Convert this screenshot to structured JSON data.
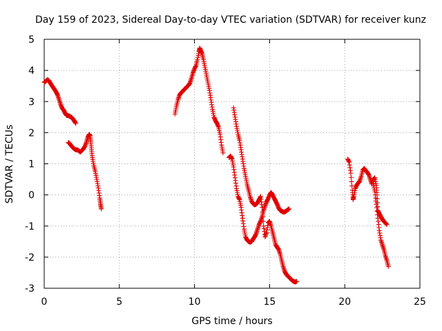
{
  "chart_data": {
    "type": "scatter",
    "title": "Day 159 of 2023, Sidereal Day-to-day VTEC variation (SDTVAR) for receiver kunz",
    "xlabel": "GPS time / hours",
    "ylabel": "SDTVAR / TECUs",
    "xlim": [
      0,
      25
    ],
    "ylim": [
      -3,
      5
    ],
    "xticks": [
      0,
      5,
      10,
      15,
      20,
      25
    ],
    "yticks": [
      -3,
      -2,
      -1,
      0,
      1,
      2,
      3,
      4,
      5
    ],
    "grid": true,
    "marker": "+",
    "color": "#e00000",
    "series": [
      {
        "name": "segment-1",
        "points": [
          [
            0.0,
            3.62
          ],
          [
            0.1,
            3.65
          ],
          [
            0.2,
            3.7
          ],
          [
            0.3,
            3.68
          ],
          [
            0.4,
            3.6
          ],
          [
            0.5,
            3.52
          ],
          [
            0.6,
            3.45
          ],
          [
            0.7,
            3.38
          ],
          [
            0.8,
            3.3
          ],
          [
            0.9,
            3.2
          ],
          [
            1.0,
            3.05
          ],
          [
            1.1,
            2.9
          ],
          [
            1.2,
            2.78
          ],
          [
            1.3,
            2.72
          ],
          [
            1.4,
            2.62
          ],
          [
            1.5,
            2.55
          ],
          [
            1.6,
            2.55
          ],
          [
            1.7,
            2.52
          ],
          [
            1.8,
            2.5
          ],
          [
            1.9,
            2.45
          ],
          [
            2.0,
            2.38
          ],
          [
            2.1,
            2.3
          ]
        ]
      },
      {
        "name": "segment-2",
        "points": [
          [
            1.6,
            1.68
          ],
          [
            1.7,
            1.65
          ],
          [
            1.8,
            1.58
          ],
          [
            1.9,
            1.52
          ],
          [
            2.0,
            1.48
          ],
          [
            2.1,
            1.45
          ],
          [
            2.2,
            1.45
          ],
          [
            2.3,
            1.42
          ],
          [
            2.4,
            1.38
          ],
          [
            2.5,
            1.42
          ],
          [
            2.6,
            1.48
          ],
          [
            2.7,
            1.55
          ],
          [
            2.8,
            1.68
          ],
          [
            2.9,
            1.85
          ],
          [
            3.0,
            1.95
          ],
          [
            3.05,
            1.9
          ],
          [
            3.1,
            1.7
          ],
          [
            3.15,
            1.45
          ],
          [
            3.2,
            1.2
          ],
          [
            3.3,
            0.95
          ],
          [
            3.4,
            0.75
          ],
          [
            3.5,
            0.5
          ],
          [
            3.6,
            0.22
          ],
          [
            3.7,
            -0.1
          ],
          [
            3.75,
            -0.3
          ],
          [
            3.8,
            -0.45
          ]
        ]
      },
      {
        "name": "segment-3",
        "points": [
          [
            8.7,
            2.6
          ],
          [
            8.8,
            2.85
          ],
          [
            8.9,
            3.05
          ],
          [
            9.0,
            3.2
          ],
          [
            9.1,
            3.28
          ],
          [
            9.2,
            3.32
          ],
          [
            9.3,
            3.38
          ],
          [
            9.4,
            3.42
          ],
          [
            9.5,
            3.48
          ],
          [
            9.6,
            3.52
          ],
          [
            9.7,
            3.6
          ],
          [
            9.8,
            3.75
          ],
          [
            9.9,
            3.92
          ],
          [
            10.0,
            4.05
          ],
          [
            10.1,
            4.15
          ],
          [
            10.2,
            4.35
          ],
          [
            10.3,
            4.6
          ],
          [
            10.35,
            4.72
          ],
          [
            10.4,
            4.65
          ],
          [
            10.5,
            4.55
          ],
          [
            10.6,
            4.35
          ],
          [
            10.7,
            4.1
          ],
          [
            10.8,
            3.85
          ],
          [
            10.9,
            3.6
          ],
          [
            11.0,
            3.35
          ],
          [
            11.1,
            3.05
          ],
          [
            11.2,
            2.75
          ],
          [
            11.3,
            2.5
          ],
          [
            11.4,
            2.38
          ],
          [
            11.5,
            2.3
          ],
          [
            11.6,
            2.18
          ],
          [
            11.7,
            1.95
          ],
          [
            11.8,
            1.6
          ],
          [
            11.9,
            1.35
          ]
        ]
      },
      {
        "name": "segment-4",
        "points": [
          [
            12.3,
            1.2
          ],
          [
            12.4,
            1.25
          ],
          [
            12.5,
            1.15
          ],
          [
            12.6,
            0.9
          ],
          [
            12.7,
            0.55
          ],
          [
            12.8,
            0.2
          ],
          [
            12.9,
            -0.05
          ],
          [
            13.0,
            -0.15
          ],
          [
            13.1,
            -0.4
          ],
          [
            13.2,
            -0.75
          ],
          [
            13.3,
            -1.1
          ],
          [
            13.4,
            -1.35
          ],
          [
            13.5,
            -1.45
          ],
          [
            13.6,
            -1.5
          ],
          [
            13.7,
            -1.52
          ],
          [
            13.8,
            -1.5
          ],
          [
            13.9,
            -1.42
          ],
          [
            14.0,
            -1.35
          ],
          [
            14.1,
            -1.25
          ],
          [
            14.2,
            -1.1
          ],
          [
            14.3,
            -0.95
          ],
          [
            14.4,
            -0.85
          ],
          [
            14.5,
            -0.7
          ],
          [
            14.6,
            -0.5
          ],
          [
            14.7,
            -0.35
          ],
          [
            14.8,
            -0.22
          ],
          [
            14.9,
            -0.12
          ],
          [
            15.0,
            0.0
          ],
          [
            15.1,
            0.08
          ],
          [
            15.2,
            0.0
          ],
          [
            15.3,
            -0.1
          ],
          [
            15.4,
            -0.2
          ],
          [
            15.5,
            -0.3
          ],
          [
            15.6,
            -0.42
          ],
          [
            15.7,
            -0.5
          ],
          [
            15.8,
            -0.52
          ],
          [
            15.9,
            -0.55
          ],
          [
            16.0,
            -0.55
          ],
          [
            16.1,
            -0.52
          ],
          [
            16.2,
            -0.48
          ],
          [
            16.3,
            -0.45
          ]
        ]
      },
      {
        "name": "segment-5",
        "points": [
          [
            12.6,
            2.8
          ],
          [
            12.7,
            2.5
          ],
          [
            12.8,
            2.2
          ],
          [
            12.9,
            1.95
          ],
          [
            13.0,
            1.75
          ],
          [
            13.1,
            1.45
          ],
          [
            13.2,
            1.15
          ],
          [
            13.3,
            0.85
          ],
          [
            13.4,
            0.6
          ],
          [
            13.5,
            0.35
          ],
          [
            13.6,
            0.15
          ],
          [
            13.7,
            -0.05
          ],
          [
            13.8,
            -0.2
          ],
          [
            13.9,
            -0.28
          ],
          [
            14.0,
            -0.32
          ],
          [
            14.1,
            -0.3
          ],
          [
            14.2,
            -0.25
          ],
          [
            14.3,
            -0.15
          ],
          [
            14.4,
            -0.05
          ],
          [
            14.5,
            -0.4
          ],
          [
            14.6,
            -1.0
          ],
          [
            14.7,
            -1.35
          ],
          [
            14.8,
            -1.2
          ],
          [
            14.9,
            -0.9
          ],
          [
            15.0,
            -0.85
          ],
          [
            15.1,
            -1.0
          ],
          [
            15.2,
            -1.2
          ],
          [
            15.3,
            -1.4
          ],
          [
            15.4,
            -1.6
          ],
          [
            15.5,
            -1.68
          ],
          [
            15.6,
            -1.75
          ],
          [
            15.7,
            -1.9
          ],
          [
            15.8,
            -2.1
          ],
          [
            15.9,
            -2.3
          ],
          [
            16.0,
            -2.45
          ],
          [
            16.1,
            -2.55
          ],
          [
            16.2,
            -2.6
          ],
          [
            16.3,
            -2.65
          ],
          [
            16.4,
            -2.7
          ],
          [
            16.5,
            -2.75
          ],
          [
            16.6,
            -2.78
          ],
          [
            16.7,
            -2.8
          ],
          [
            16.8,
            -2.78
          ]
        ]
      },
      {
        "name": "segment-6",
        "points": [
          [
            20.2,
            1.15
          ],
          [
            20.3,
            1.05
          ],
          [
            20.4,
            0.7
          ],
          [
            20.5,
            0.15
          ],
          [
            20.55,
            -0.15
          ],
          [
            20.6,
            -0.05
          ],
          [
            20.7,
            0.2
          ],
          [
            20.8,
            0.32
          ],
          [
            20.9,
            0.38
          ],
          [
            21.0,
            0.45
          ],
          [
            21.1,
            0.6
          ],
          [
            21.2,
            0.8
          ],
          [
            21.3,
            0.85
          ],
          [
            21.4,
            0.78
          ],
          [
            21.5,
            0.72
          ],
          [
            21.6,
            0.65
          ],
          [
            21.7,
            0.5
          ],
          [
            21.8,
            0.35
          ],
          [
            21.9,
            0.5
          ],
          [
            22.0,
            0.55
          ],
          [
            22.1,
            0.3
          ],
          [
            22.15,
            0.0
          ],
          [
            22.2,
            -0.5
          ],
          [
            22.3,
            -0.6
          ],
          [
            22.4,
            -0.7
          ],
          [
            22.5,
            -0.78
          ],
          [
            22.6,
            -0.85
          ],
          [
            22.7,
            -0.9
          ],
          [
            22.8,
            -0.95
          ]
        ]
      },
      {
        "name": "segment-7",
        "points": [
          [
            21.9,
            0.35
          ],
          [
            22.0,
            0.1
          ],
          [
            22.1,
            -0.3
          ],
          [
            22.2,
            -0.75
          ],
          [
            22.3,
            -1.15
          ],
          [
            22.4,
            -1.45
          ],
          [
            22.5,
            -1.6
          ],
          [
            22.6,
            -1.75
          ],
          [
            22.7,
            -1.95
          ],
          [
            22.8,
            -2.1
          ],
          [
            22.9,
            -2.3
          ]
        ]
      }
    ]
  }
}
